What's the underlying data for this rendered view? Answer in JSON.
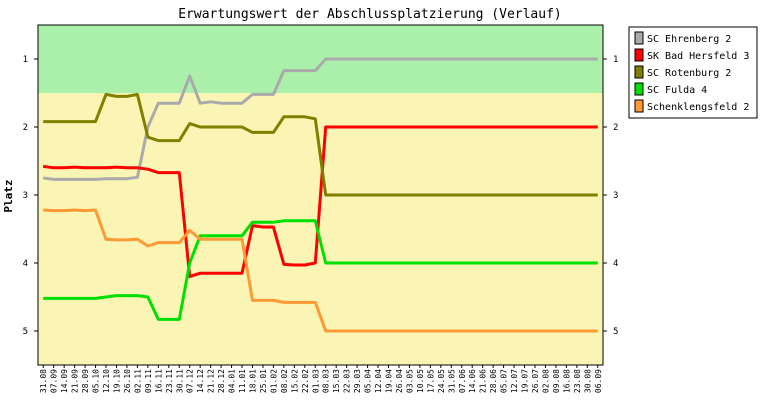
{
  "chart_data": {
    "type": "line",
    "title": "Erwartungswert der Abschlussplatzierung (Verlauf)",
    "xlabel": "",
    "ylabel": "Platz",
    "ylim": [
      0.5,
      5.5
    ],
    "y_inverted": true,
    "yticks": [
      "1",
      "2",
      "3",
      "4",
      "5"
    ],
    "grid": false,
    "legend_position": "right",
    "background_bands": [
      {
        "from": 0.5,
        "to": 1.5,
        "color": "#aaf0aa"
      },
      {
        "from": 1.5,
        "to": 5.5,
        "color": "#faf5b4"
      }
    ],
    "categories": [
      "31.08",
      "07.09",
      "14.09",
      "21.09",
      "28.09",
      "05.10",
      "12.10",
      "19.10",
      "26.10",
      "02.11",
      "09.11",
      "16.11",
      "23.11",
      "30.11",
      "07.12",
      "14.12",
      "21.12",
      "28.12",
      "04.01",
      "11.01",
      "18.01",
      "25.01",
      "01.02",
      "08.02",
      "15.02",
      "22.02",
      "01.03",
      "08.03",
      "15.03",
      "22.03",
      "29.03",
      "05.04",
      "12.04",
      "19.04",
      "26.04",
      "03.05",
      "10.05",
      "17.05",
      "24.05",
      "31.05",
      "07.06",
      "14.06",
      "21.06",
      "28.06",
      "05.07",
      "12.07",
      "19.07",
      "26.07",
      "02.08",
      "09.08",
      "16.08",
      "23.08",
      "30.08",
      "06.09"
    ],
    "series": [
      {
        "name": "SC Ehrenberg 2",
        "color": "#aaaaaa",
        "values": [
          2.75,
          2.77,
          2.77,
          2.77,
          2.77,
          2.77,
          2.76,
          2.76,
          2.76,
          2.74,
          2.0,
          1.65,
          1.65,
          1.65,
          1.25,
          1.65,
          1.63,
          1.65,
          1.65,
          1.65,
          1.52,
          1.52,
          1.52,
          1.17,
          1.17,
          1.17,
          1.17,
          1.0,
          1.0,
          1.0,
          1.0,
          1.0,
          1.0,
          1.0,
          1.0,
          1.0,
          1.0,
          1.0,
          1.0,
          1.0,
          1.0,
          1.0,
          1.0,
          1.0,
          1.0,
          1.0,
          1.0,
          1.0,
          1.0,
          1.0,
          1.0,
          1.0,
          1.0,
          1.0
        ]
      },
      {
        "name": "SK Bad Hersfeld 3",
        "color": "#ff0000",
        "values": [
          2.58,
          2.6,
          2.6,
          2.59,
          2.6,
          2.6,
          2.6,
          2.59,
          2.6,
          2.6,
          2.62,
          2.67,
          2.67,
          2.67,
          4.2,
          4.15,
          4.15,
          4.15,
          4.15,
          4.15,
          3.45,
          3.47,
          3.47,
          4.02,
          4.03,
          4.03,
          4.0,
          2.0,
          2.0,
          2.0,
          2.0,
          2.0,
          2.0,
          2.0,
          2.0,
          2.0,
          2.0,
          2.0,
          2.0,
          2.0,
          2.0,
          2.0,
          2.0,
          2.0,
          2.0,
          2.0,
          2.0,
          2.0,
          2.0,
          2.0,
          2.0,
          2.0,
          2.0,
          2.0
        ]
      },
      {
        "name": "SC Rotenburg 2",
        "color": "#808000",
        "values": [
          1.92,
          1.92,
          1.92,
          1.92,
          1.92,
          1.92,
          1.52,
          1.55,
          1.55,
          1.52,
          2.15,
          2.2,
          2.2,
          2.2,
          1.95,
          2.0,
          2.0,
          2.0,
          2.0,
          2.0,
          2.08,
          2.08,
          2.08,
          1.85,
          1.85,
          1.85,
          1.88,
          3.0,
          3.0,
          3.0,
          3.0,
          3.0,
          3.0,
          3.0,
          3.0,
          3.0,
          3.0,
          3.0,
          3.0,
          3.0,
          3.0,
          3.0,
          3.0,
          3.0,
          3.0,
          3.0,
          3.0,
          3.0,
          3.0,
          3.0,
          3.0,
          3.0,
          3.0,
          3.0
        ]
      },
      {
        "name": "SC Fulda 4",
        "color": "#00e000",
        "values": [
          4.52,
          4.52,
          4.52,
          4.52,
          4.52,
          4.52,
          4.5,
          4.48,
          4.48,
          4.48,
          4.5,
          4.83,
          4.83,
          4.83,
          4.0,
          3.6,
          3.6,
          3.6,
          3.6,
          3.6,
          3.4,
          3.4,
          3.4,
          3.38,
          3.38,
          3.38,
          3.38,
          4.0,
          4.0,
          4.0,
          4.0,
          4.0,
          4.0,
          4.0,
          4.0,
          4.0,
          4.0,
          4.0,
          4.0,
          4.0,
          4.0,
          4.0,
          4.0,
          4.0,
          4.0,
          4.0,
          4.0,
          4.0,
          4.0,
          4.0,
          4.0,
          4.0,
          4.0,
          4.0
        ]
      },
      {
        "name": "Schenklengsfeld 2",
        "color": "#ff9933",
        "values": [
          3.22,
          3.23,
          3.23,
          3.22,
          3.23,
          3.22,
          3.65,
          3.66,
          3.66,
          3.65,
          3.75,
          3.7,
          3.7,
          3.7,
          3.52,
          3.65,
          3.65,
          3.65,
          3.65,
          3.65,
          4.55,
          4.55,
          4.55,
          4.58,
          4.58,
          4.58,
          4.58,
          5.0,
          5.0,
          5.0,
          5.0,
          5.0,
          5.0,
          5.0,
          5.0,
          5.0,
          5.0,
          5.0,
          5.0,
          5.0,
          5.0,
          5.0,
          5.0,
          5.0,
          5.0,
          5.0,
          5.0,
          5.0,
          5.0,
          5.0,
          5.0,
          5.0,
          5.0,
          5.0
        ]
      }
    ]
  }
}
